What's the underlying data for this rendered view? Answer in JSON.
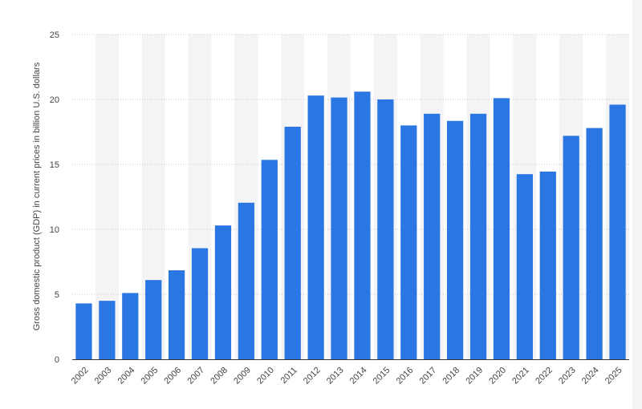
{
  "chart_data": {
    "type": "bar",
    "categories": [
      "2002",
      "2003",
      "2004",
      "2005",
      "2006",
      "2007",
      "2008",
      "2009",
      "2010",
      "2011",
      "2012",
      "2013",
      "2014",
      "2015",
      "2016",
      "2017",
      "2018",
      "2019",
      "2020",
      "2021",
      "2022",
      "2023",
      "2024",
      "2025"
    ],
    "values": [
      4.3,
      4.5,
      5.1,
      6.1,
      6.85,
      8.55,
      10.3,
      12.05,
      15.35,
      17.9,
      20.3,
      20.15,
      20.6,
      20.0,
      18.0,
      18.9,
      18.35,
      18.9,
      20.1,
      14.25,
      14.45,
      17.2,
      17.8,
      19.6
    ],
    "title": "",
    "xlabel": "",
    "ylabel": "Gross domestic product (GDP) in current prices in billion U.S. dollars",
    "ylim": [
      0,
      25
    ],
    "yticks": [
      "0",
      "5",
      "10",
      "15",
      "20",
      "25"
    ],
    "grid": true,
    "bar_color": "#2a77e4"
  }
}
